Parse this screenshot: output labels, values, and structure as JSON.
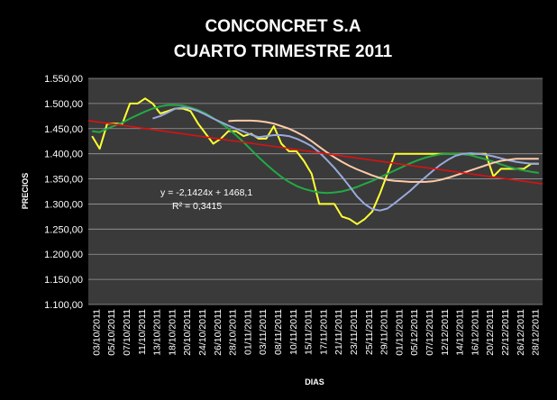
{
  "chart_data": {
    "type": "line",
    "title": "CONCONCRET S.A",
    "subtitle": "CUARTO TRIMESTRE 2011",
    "xlabel": "DIAS",
    "ylabel": "PRECIOS",
    "ylim": [
      1100,
      1550
    ],
    "yticks": [
      "1.100,00",
      "1.150,00",
      "1.200,00",
      "1.250,00",
      "1.300,00",
      "1.350,00",
      "1.400,00",
      "1.450,00",
      "1.500,00",
      "1.550,00"
    ],
    "ytick_values": [
      1100,
      1150,
      1200,
      1250,
      1300,
      1350,
      1400,
      1450,
      1500,
      1550
    ],
    "xtick_labels": [
      "03/10/2011",
      "05/10/2011",
      "07/10/2011",
      "11/10/2011",
      "13/10/2011",
      "18/10/2011",
      "20/10/2011",
      "24/10/2011",
      "26/10/2011",
      "28/10/2011",
      "01/11/2011",
      "03/11/2011",
      "08/11/2011",
      "10/11/2011",
      "15/11/2011",
      "17/11/2011",
      "21/11/2011",
      "23/11/2011",
      "25/11/2011",
      "29/11/2011",
      "01/12/2011",
      "05/12/2011",
      "07/12/2011",
      "12/12/2011",
      "14/12/2011",
      "16/12/2011",
      "20/12/2011",
      "22/12/2011",
      "26/12/2011",
      "28/12/2011"
    ],
    "n_points": 60,
    "grid": true,
    "background": "#3a3a3a",
    "annotations": [
      "y = -2,1424x + 1468,1",
      "R² = 0,3415"
    ],
    "series": [
      {
        "color": "#ffff33",
        "start": 0,
        "values": [
          1435,
          1410,
          1460,
          1460,
          1460,
          1500,
          1500,
          1510,
          1500,
          1480,
          1485,
          1490,
          1490,
          1485,
          1460,
          1440,
          1420,
          1430,
          1445,
          1445,
          1435,
          1440,
          1430,
          1430,
          1455,
          1420,
          1405,
          1405,
          1385,
          1360,
          1300,
          1300,
          1300,
          1275,
          1270,
          1260,
          1270,
          1285,
          1320,
          1360,
          1400,
          1400,
          1400,
          1400,
          1400,
          1400,
          1400,
          1400,
          1400,
          1400,
          1400,
          1400,
          1400,
          1355,
          1370,
          1370,
          1370,
          1370,
          1380,
          1380
        ]
      },
      {
        "color": "#22aa44",
        "start": 0,
        "values": [
          1445,
          1443,
          1450,
          1456,
          1462,
          1470,
          1477,
          1484,
          1490,
          1494,
          1497,
          1497,
          1496,
          1492,
          1487,
          1480,
          1471,
          1461,
          1450,
          1437,
          1423,
          1408,
          1393,
          1379,
          1366,
          1354,
          1344,
          1336,
          1330,
          1326,
          1323,
          1322,
          1323,
          1325,
          1329,
          1334,
          1340,
          1346,
          1353,
          1360,
          1367,
          1374,
          1381,
          1387,
          1392,
          1396,
          1399,
          1400,
          1400,
          1399,
          1397,
          1393,
          1389,
          1384,
          1379,
          1374,
          1370,
          1367,
          1364,
          1362
        ]
      },
      {
        "color": "#99aadd",
        "start": 8,
        "values": [
          1470,
          1475,
          1482,
          1490,
          1492,
          1490,
          1485,
          1478,
          1470,
          1463,
          1456,
          1450,
          1444,
          1438,
          1433,
          1435,
          1437,
          1437,
          1435,
          1430,
          1423,
          1415,
          1403,
          1388,
          1372,
          1354,
          1335,
          1315,
          1300,
          1290,
          1287,
          1291,
          1302,
          1314,
          1326,
          1340,
          1353,
          1366,
          1378,
          1388,
          1396,
          1400,
          1401,
          1400,
          1398,
          1395,
          1391,
          1387,
          1384,
          1382,
          1380,
          1380
        ]
      },
      {
        "color": "#ffccaa",
        "start": 18,
        "values": [
          1465,
          1466,
          1466,
          1466,
          1465,
          1463,
          1460,
          1455,
          1450,
          1443,
          1435,
          1425,
          1414,
          1403,
          1393,
          1384,
          1376,
          1369,
          1363,
          1357,
          1352,
          1348,
          1346,
          1345,
          1344,
          1344,
          1344,
          1345,
          1348,
          1352,
          1357,
          1362,
          1367,
          1372,
          1377,
          1382,
          1386,
          1388,
          1390,
          1390,
          1390,
          1390
        ]
      },
      {
        "color": "#dd1111",
        "start": 0,
        "trend": true,
        "values": [
          1466,
          1340
        ]
      }
    ]
  }
}
